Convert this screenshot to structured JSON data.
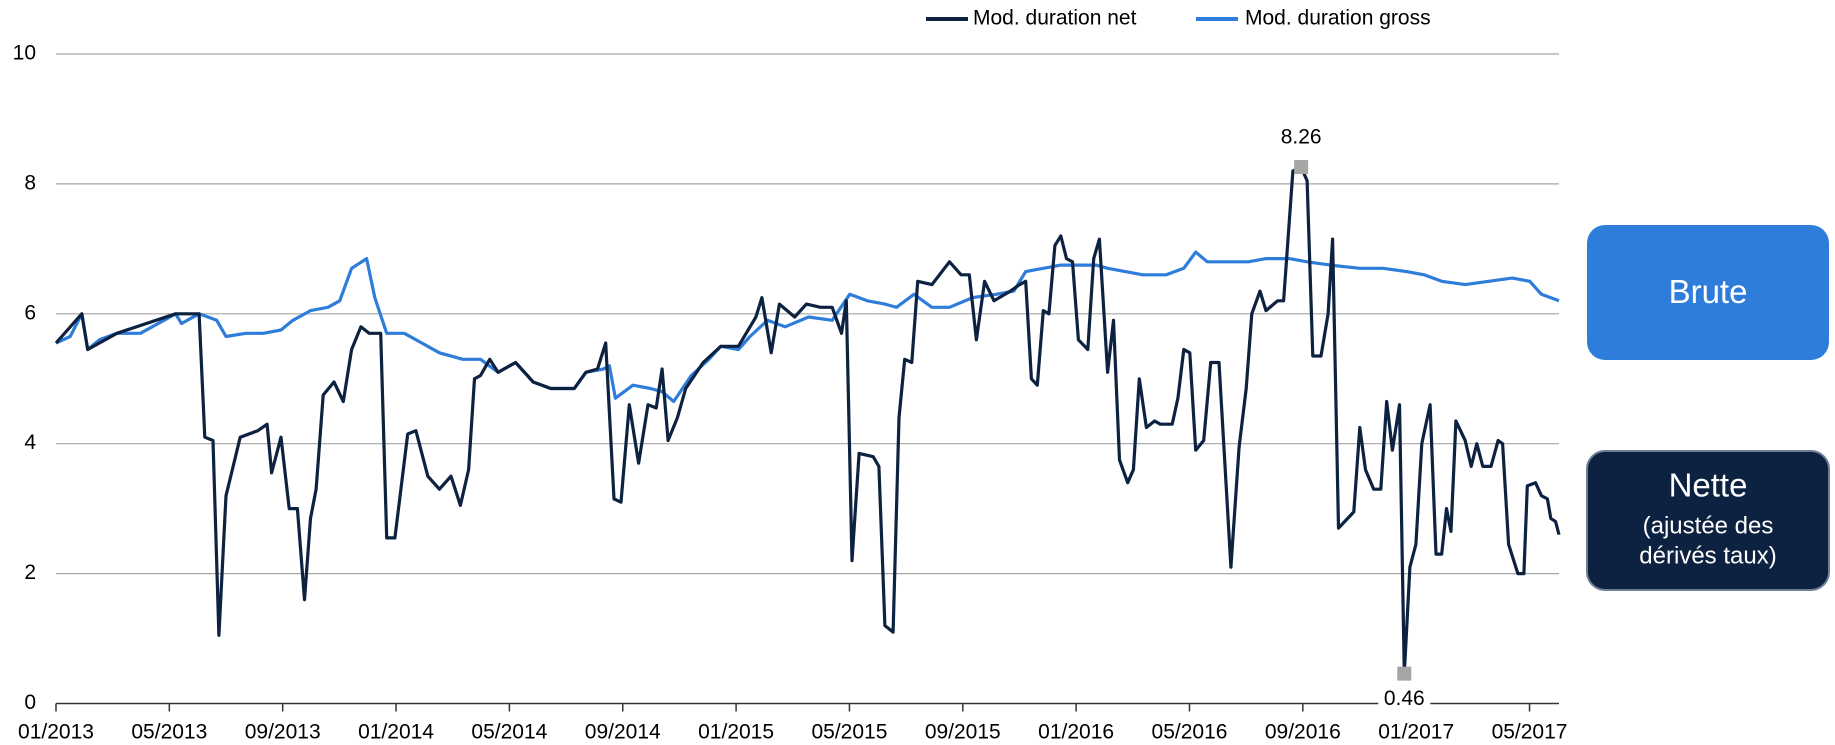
{
  "chart_data": {
    "type": "line",
    "xlim": [
      0,
      53.04
    ],
    "xticks": [
      {
        "value": 0,
        "label": "01/2013"
      },
      {
        "value": 4,
        "label": "05/2013"
      },
      {
        "value": 8,
        "label": "09/2013"
      },
      {
        "value": 12,
        "label": "01/2014"
      },
      {
        "value": 16,
        "label": "05/2014"
      },
      {
        "value": 20,
        "label": "09/2014"
      },
      {
        "value": 24,
        "label": "01/2015"
      },
      {
        "value": 28,
        "label": "05/2015"
      },
      {
        "value": 32,
        "label": "09/2015"
      },
      {
        "value": 36,
        "label": "01/2016"
      },
      {
        "value": 40,
        "label": "05/2016"
      },
      {
        "value": 44,
        "label": "09/2016"
      },
      {
        "value": 48,
        "label": "01/2017"
      },
      {
        "value": 52,
        "label": "05/2017"
      }
    ],
    "ylim": [
      0,
      10
    ],
    "yticks": [
      0,
      2,
      4,
      6,
      8,
      10
    ],
    "grid": true,
    "legend": "top",
    "series": [
      {
        "name": "Mod. duration net",
        "color": "#0d2240",
        "x": [
          0,
          0.91,
          1.12,
          2.15,
          4.22,
          5.05,
          5.25,
          5.54,
          5.75,
          6.0,
          6.5,
          7.12,
          7.45,
          7.61,
          7.94,
          8.23,
          8.52,
          8.77,
          8.98,
          9.18,
          9.43,
          9.81,
          10.14,
          10.43,
          10.76,
          11.05,
          11.46,
          11.67,
          11.96,
          12.41,
          12.7,
          13.12,
          13.53,
          13.94,
          14.27,
          14.56,
          14.77,
          14.98,
          15.31,
          15.6,
          16.22,
          16.84,
          17.46,
          18.29,
          18.7,
          19.11,
          19.4,
          19.69,
          19.94,
          20.23,
          20.56,
          20.89,
          21.18,
          21.39,
          21.6,
          21.93,
          22.22,
          22.84,
          23.46,
          24.08,
          24.7,
          24.91,
          25.24,
          25.53,
          26.07,
          26.48,
          26.98,
          27.39,
          27.72,
          27.89,
          28.09,
          28.34,
          28.84,
          29.04,
          29.25,
          29.54,
          29.75,
          29.95,
          30.2,
          30.41,
          30.91,
          31.53,
          31.94,
          32.23,
          32.48,
          32.77,
          33.1,
          33.68,
          34.01,
          34.22,
          34.42,
          34.63,
          34.84,
          35.04,
          35.25,
          35.46,
          35.66,
          35.87,
          36.08,
          36.41,
          36.62,
          36.82,
          37.11,
          37.32,
          37.53,
          37.82,
          38.02,
          38.23,
          38.48,
          38.77,
          38.97,
          39.39,
          39.59,
          39.8,
          40.01,
          40.22,
          40.5,
          40.75,
          41.04,
          41.46,
          41.75,
          42.0,
          42.2,
          42.49,
          42.7,
          43.11,
          43.32,
          43.65,
          43.94,
          44.15,
          44.35,
          44.64,
          44.89,
          45.05,
          45.26,
          45.8,
          46.01,
          46.21,
          46.5,
          46.75,
          46.96,
          47.16,
          47.41,
          47.58,
          47.78,
          47.99,
          48.2,
          48.49,
          48.7,
          48.9,
          49.07,
          49.23,
          49.4,
          49.73,
          49.94,
          50.14,
          50.35,
          50.64,
          50.89,
          51.05,
          51.26,
          51.59,
          51.8,
          51.92,
          52.21,
          52.42,
          52.63,
          52.75,
          52.92,
          53.04
        ],
        "values": [
          5.55,
          6.0,
          5.45,
          5.7,
          6.0,
          6.0,
          4.1,
          4.05,
          1.05,
          3.2,
          4.1,
          4.2,
          4.3,
          3.55,
          4.1,
          3.0,
          3.0,
          1.6,
          2.85,
          3.3,
          4.75,
          4.95,
          4.65,
          5.45,
          5.8,
          5.7,
          5.7,
          2.55,
          2.55,
          4.15,
          4.2,
          3.5,
          3.3,
          3.5,
          3.05,
          3.6,
          5.0,
          5.05,
          5.3,
          5.1,
          5.25,
          4.95,
          4.85,
          4.85,
          5.1,
          5.15,
          5.55,
          3.15,
          3.1,
          4.6,
          3.7,
          4.6,
          4.55,
          5.15,
          4.05,
          4.4,
          4.85,
          5.25,
          5.5,
          5.5,
          5.95,
          6.25,
          5.4,
          6.15,
          5.95,
          6.15,
          6.1,
          6.1,
          5.7,
          6.2,
          2.2,
          3.85,
          3.8,
          3.65,
          1.2,
          1.1,
          4.4,
          5.3,
          5.25,
          6.5,
          6.45,
          6.8,
          6.6,
          6.6,
          5.6,
          6.5,
          6.2,
          6.35,
          6.45,
          6.5,
          5.0,
          4.9,
          6.05,
          6.0,
          7.05,
          7.2,
          6.85,
          6.8,
          5.6,
          5.45,
          6.85,
          7.15,
          5.1,
          5.9,
          3.75,
          3.4,
          3.6,
          5.0,
          4.25,
          4.35,
          4.3,
          4.3,
          4.7,
          5.45,
          5.4,
          3.9,
          4.05,
          5.25,
          5.25,
          2.1,
          3.95,
          4.85,
          6.0,
          6.35,
          6.05,
          6.2,
          6.2,
          8.2,
          8.26,
          8.05,
          5.35,
          5.35,
          6.0,
          7.15,
          2.7,
          2.95,
          4.25,
          3.6,
          3.3,
          3.3,
          4.65,
          3.9,
          4.6,
          0.46,
          2.1,
          2.45,
          4.0,
          4.6,
          2.3,
          2.3,
          3.0,
          2.65,
          4.35,
          4.05,
          3.65,
          4.0,
          3.65,
          3.65,
          4.05,
          4.0,
          2.45,
          2.0,
          2.0,
          3.35,
          3.4,
          3.2,
          3.15,
          2.85,
          2.8,
          2.6
        ]
      },
      {
        "name": "Mod. duration gross",
        "color": "#2f7ddb",
        "x": [
          0,
          0.5,
          0.91,
          1.12,
          1.53,
          2.15,
          2.98,
          3.81,
          4.22,
          4.43,
          5.05,
          5.67,
          6.0,
          6.7,
          7.32,
          7.94,
          8.36,
          8.98,
          9.6,
          10.01,
          10.43,
          10.96,
          11.25,
          11.67,
          12.29,
          12.91,
          13.53,
          14.36,
          14.98,
          15.6,
          16.22,
          16.84,
          17.46,
          18.29,
          18.7,
          19.32,
          19.53,
          19.74,
          20.36,
          20.98,
          21.39,
          21.8,
          22.42,
          23.04,
          23.46,
          24.08,
          24.49,
          25.11,
          25.73,
          26.56,
          27.39,
          28.01,
          28.63,
          29.25,
          29.66,
          30.28,
          30.91,
          31.53,
          32.35,
          33.18,
          33.8,
          34.22,
          34.84,
          35.46,
          36.08,
          36.7,
          37.11,
          37.73,
          38.35,
          39.18,
          39.8,
          40.22,
          40.63,
          41.46,
          42.08,
          42.7,
          43.52,
          44.15,
          44.97,
          46.01,
          46.83,
          47.66,
          48.28,
          48.9,
          49.73,
          50.56,
          51.39,
          52.01,
          52.42,
          53.04
        ],
        "values": [
          5.55,
          5.65,
          6.0,
          5.45,
          5.6,
          5.7,
          5.7,
          5.9,
          6.0,
          5.85,
          6.0,
          5.9,
          5.65,
          5.7,
          5.7,
          5.75,
          5.9,
          6.05,
          6.1,
          6.2,
          6.7,
          6.85,
          6.25,
          5.7,
          5.7,
          5.55,
          5.4,
          5.3,
          5.3,
          5.1,
          5.25,
          4.95,
          4.85,
          4.85,
          5.1,
          5.15,
          5.2,
          4.7,
          4.9,
          4.85,
          4.8,
          4.65,
          5.05,
          5.3,
          5.5,
          5.45,
          5.65,
          5.9,
          5.8,
          5.95,
          5.9,
          6.3,
          6.2,
          6.15,
          6.1,
          6.3,
          6.1,
          6.1,
          6.25,
          6.3,
          6.35,
          6.65,
          6.7,
          6.75,
          6.75,
          6.75,
          6.7,
          6.65,
          6.6,
          6.6,
          6.7,
          6.95,
          6.8,
          6.8,
          6.8,
          6.85,
          6.85,
          6.8,
          6.75,
          6.7,
          6.7,
          6.65,
          6.6,
          6.5,
          6.45,
          6.5,
          6.55,
          6.5,
          6.3,
          6.2
        ]
      }
    ],
    "annotations": [
      {
        "text": "8.26",
        "x": 43.94,
        "y": 8.26,
        "position": "above"
      },
      {
        "text": "0.46",
        "x": 47.58,
        "y": 0.46,
        "position": "below"
      }
    ],
    "side_labels": [
      {
        "title": "Brute",
        "color": "#2f7ddb"
      },
      {
        "title": "Nette",
        "lines": [
          "(ajustée des",
          "dérivés taux)"
        ],
        "color": "#0d2240"
      }
    ]
  }
}
